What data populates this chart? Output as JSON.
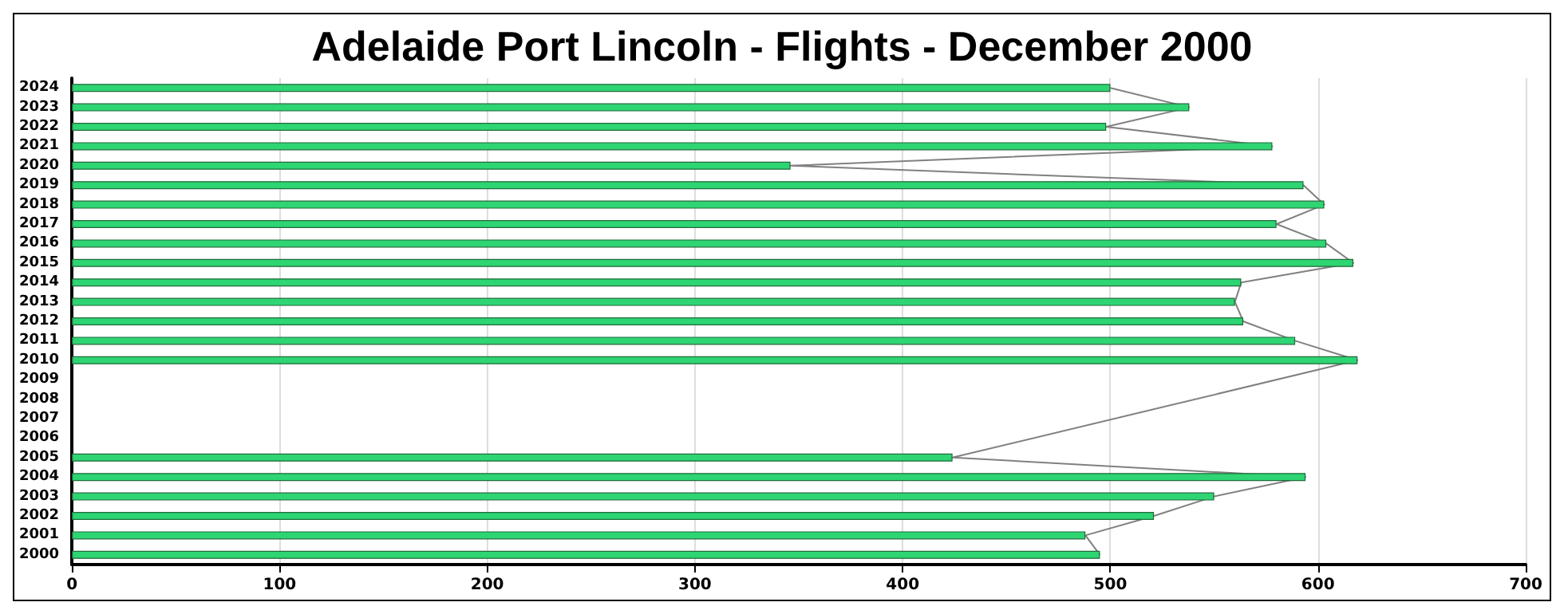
{
  "chart_data": {
    "type": "bar",
    "orientation": "horizontal",
    "title": "Adelaide Port Lincoln - Flights - December 2000",
    "categories": [
      "2024",
      "2023",
      "2022",
      "2021",
      "2020",
      "2019",
      "2018",
      "2017",
      "2016",
      "2015",
      "2014",
      "2013",
      "2012",
      "2011",
      "2010",
      "2009",
      "2008",
      "2007",
      "2006",
      "2005",
      "2004",
      "2003",
      "2002",
      "2001",
      "2000"
    ],
    "series": [
      {
        "color": "#2ed573",
        "values": [
          500,
          538,
          498,
          578,
          346,
          593,
          603,
          580,
          604,
          617,
          563,
          560,
          564,
          589,
          619,
          null,
          null,
          null,
          null,
          424,
          594,
          550,
          521,
          488,
          495
        ]
      },
      {
        "type": "line",
        "color": "#808080",
        "values": [
          500,
          538,
          498,
          578,
          346,
          593,
          603,
          580,
          604,
          617,
          563,
          560,
          564,
          589,
          619,
          null,
          null,
          null,
          null,
          424,
          594,
          550,
          521,
          488,
          495
        ]
      }
    ],
    "xlim": [
      0,
      700
    ],
    "xticks": [
      0,
      100,
      200,
      300,
      400,
      500,
      600,
      700
    ],
    "grid": "x"
  }
}
